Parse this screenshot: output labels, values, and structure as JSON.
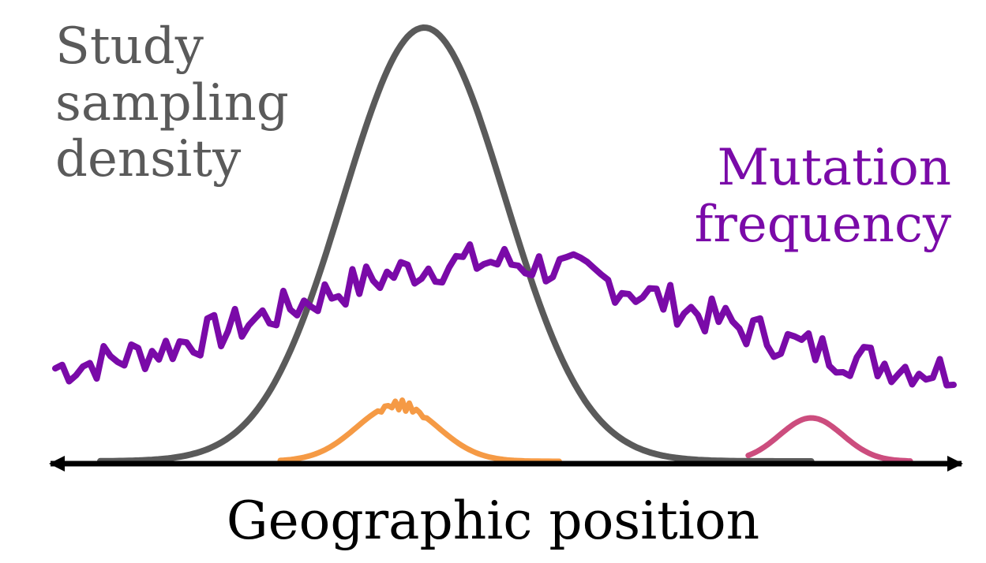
{
  "labels": {
    "sampling": [
      "Study",
      "sampling",
      "density"
    ],
    "mutation": [
      "Mutation",
      "frequency"
    ],
    "axis": "Geographic position"
  },
  "colors": {
    "sampling": "#5a5a5a",
    "mutation": "#7a0aa8",
    "orange_peak": "#f59a45",
    "pink_peak": "#cc4d7e",
    "axis": "#000000"
  },
  "curves": {
    "sampling_density": {
      "center": 0.41,
      "width": 0.09,
      "height": 1.0
    },
    "orange_peak": {
      "center": 0.38,
      "width": 0.045,
      "height": 0.13
    },
    "pink_peak": {
      "center": 0.84,
      "width": 0.035,
      "height": 0.1
    }
  }
}
